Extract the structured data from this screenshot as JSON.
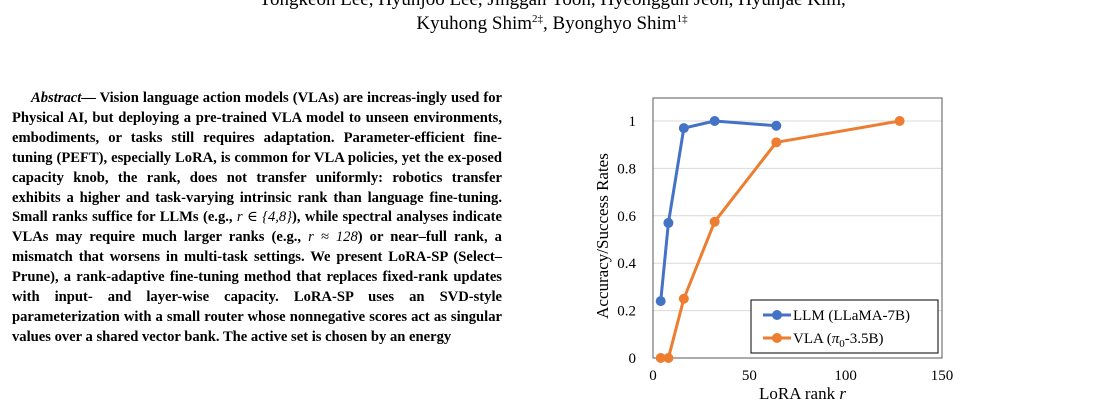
{
  "header": {
    "authors_line1": "Yongkeon Lee, Hyunjoo Lee, Jinggan Yoon, Hyeonggun Jeon, Hyunjae Kim,",
    "authors_line2_name1": "Kyuhong Shim",
    "authors_line2_sup1": "2‡",
    "authors_line2_sep": ", ",
    "authors_line2_name2": "Byonghyo Shim",
    "authors_line2_sup2": "1‡"
  },
  "abstract": {
    "lead": "Abstract",
    "s1": "— Vision language action models (VLAs) are increas-ingly used for Physical AI, but deploying a pre-trained VLA model to unseen environments, embodiments, or tasks still requires adaptation. Parameter-efficient fine-tuning (PEFT), especially LoRA, is common for VLA policies, yet the ex-posed capacity knob, the rank, does not transfer uniformly: robotics transfer exhibits a higher and task-varying intrinsic rank than language fine-tuning. Small ranks suffice for LLMs (e.g., ",
    "m1": "r ∈ {4,8}",
    "s2": "), while spectral analyses indicate VLAs may require much larger ranks (e.g., ",
    "m2": "r ≈ 128",
    "s3": ") or near–full rank, a mismatch that worsens in multi-task settings. We present LoRA-SP (Select–Prune), a rank-adaptive fine-tuning method that replaces fixed-rank updates with input- and layer-wise capacity. LoRA-SP uses an SVD-style parameterization with a small router whose nonnegative scores act as singular values over a shared vector bank. The active set is chosen by an energy"
  },
  "chart_data": {
    "type": "line",
    "xlabel": "LoRA rank r",
    "ylabel": "Accuracy/Success Rates",
    "xlim": [
      0,
      150
    ],
    "ylim": [
      0,
      1
    ],
    "xticks": [
      0,
      50,
      100,
      150
    ],
    "yticks": [
      0,
      0.2,
      0.4,
      0.6,
      0.8,
      1
    ],
    "xtick_labels": [
      "0",
      "50",
      "100",
      "150"
    ],
    "ytick_labels": [
      "0",
      "0.2",
      "0.4",
      "0.6",
      "0.8",
      "1"
    ],
    "grid": "horizontal",
    "legend_position": "bottom-right",
    "series": [
      {
        "name": "LLM (LLaMA-7B)",
        "color": "#4472c4",
        "points": [
          [
            4,
            0.24
          ],
          [
            8,
            0.57
          ],
          [
            16,
            0.97
          ],
          [
            32,
            1.0
          ],
          [
            64,
            0.98
          ]
        ]
      },
      {
        "name": "VLA (π0-3.5B)",
        "legend_prefix": "VLA (",
        "legend_symbol": "π",
        "legend_sub": "0",
        "legend_suffix": "-3.5B)",
        "color": "#ed7d31",
        "points": [
          [
            4,
            0.0
          ],
          [
            8,
            0.0
          ],
          [
            16,
            0.25
          ],
          [
            32,
            0.575
          ],
          [
            64,
            0.91
          ],
          [
            128,
            1.0
          ]
        ]
      }
    ]
  }
}
